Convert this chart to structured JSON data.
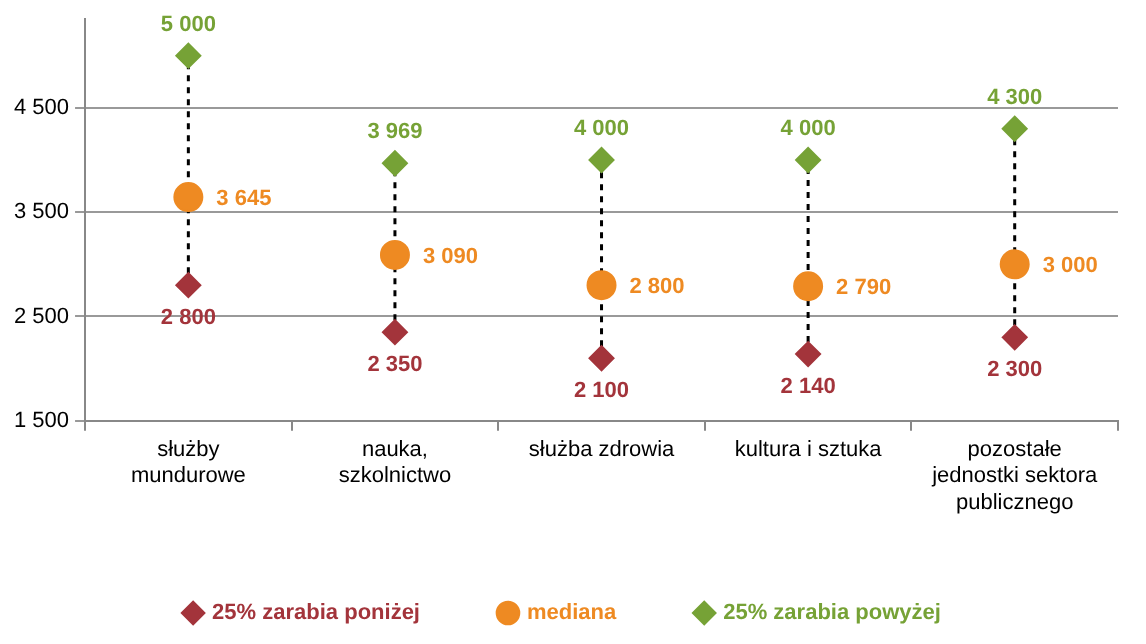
{
  "chart_data": {
    "type": "scatter",
    "categories": [
      "służby mundurowe",
      "nauka, szkolnictwo",
      "służba zdrowia",
      "kultura i sztuka",
      "pozostałe jednostki sektora publicznego"
    ],
    "series": [
      {
        "name": "25% zarabia poniżej",
        "color": "#a3343b",
        "marker": "diamond",
        "values": [
          2800,
          2350,
          2100,
          2140,
          2300
        ]
      },
      {
        "name": "mediana",
        "color": "#ee8a22",
        "marker": "circle",
        "values": [
          3645,
          3090,
          2800,
          2790,
          3000
        ]
      },
      {
        "name": "25% zarabia powyżej",
        "color": "#76a236",
        "marker": "diamond",
        "values": [
          5000,
          3969,
          4000,
          4000,
          4300
        ]
      }
    ],
    "ylim": [
      1500,
      5350
    ],
    "yticks": [
      1500,
      2500,
      3500,
      4500
    ],
    "grid": "y",
    "legend": "bottom",
    "data_labels": true
  }
}
